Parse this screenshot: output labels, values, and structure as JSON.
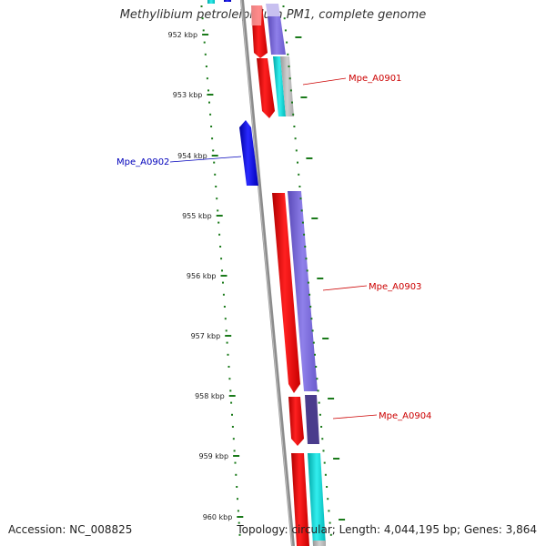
{
  "header": {
    "title": "Methylibium petroleiphilum PM1, complete genome"
  },
  "footer": {
    "accession": "Accession: NC_008825",
    "topology": "Topology: circular; Length: 4,044,195 bp; Genes: 3,864"
  },
  "ruler": {
    "labels": [
      "952 kbp",
      "953 kbp",
      "954 kbp",
      "955 kbp",
      "956 kbp",
      "957 kbp",
      "958 kbp",
      "959 kbp",
      "960 kbp"
    ]
  },
  "genes": [
    {
      "label": "Mpe_A0901",
      "color": "#cc0000"
    },
    {
      "label": "Mpe_A0902",
      "color": "#0000bb"
    },
    {
      "label": "Mpe_A0903",
      "color": "#cc0000"
    },
    {
      "label": "Mpe_A0904",
      "color": "#cc0000"
    }
  ],
  "colors": {
    "backbone": "#8c8c8c",
    "ruler_ticks": "#1a7a1a",
    "forward_cds": "#ee0000",
    "reverse_cds": "#0000ee",
    "blast_purple": "#7b68d9",
    "blast_cyan": "#00cccc"
  }
}
